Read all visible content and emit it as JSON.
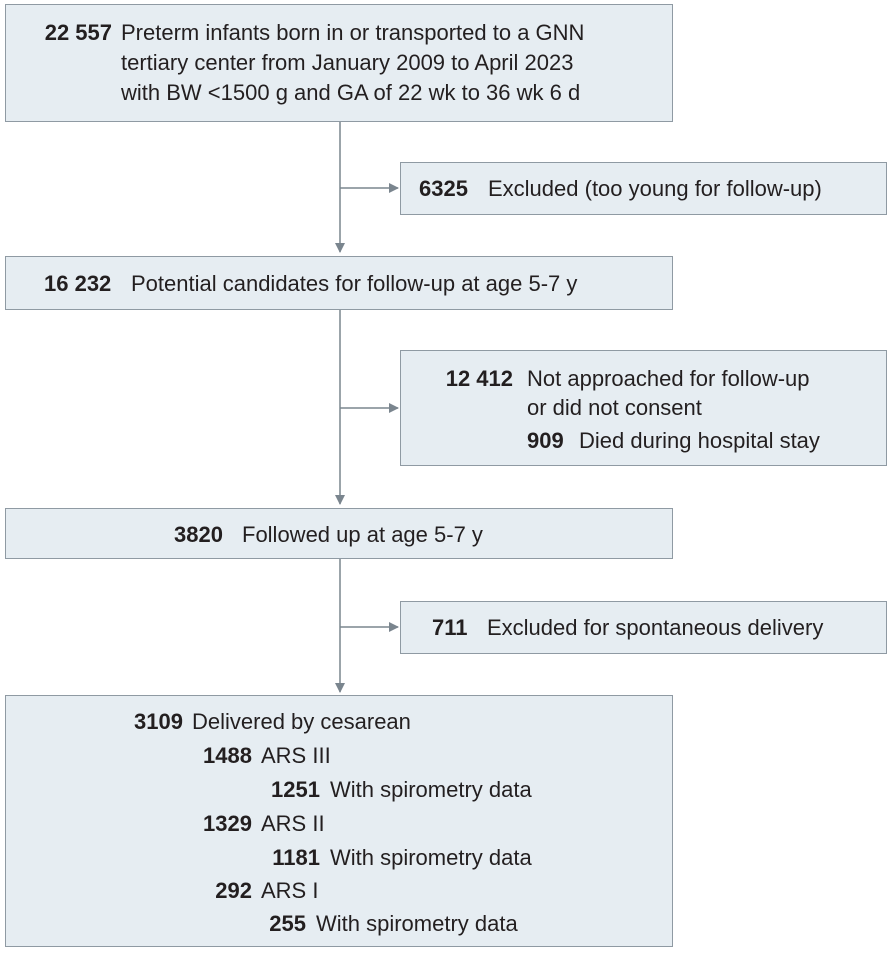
{
  "boxes": {
    "cohort": {
      "count": "22 557",
      "lines": [
        "Preterm infants born in or transported to a GNN",
        "tertiary center from January 2009 to April 2023",
        "with BW <1500 g and GA of 22 wk to 36 wk 6 d"
      ]
    },
    "excluded_young": {
      "count": "6325",
      "text": "Excluded (too young for follow-up)"
    },
    "candidates": {
      "count": "16 232",
      "text": "Potential candidates for follow-up at age 5-7 y"
    },
    "not_followed": {
      "items": [
        {
          "count": "12 412",
          "lines": [
            "Not approached for follow-up",
            "or did not consent"
          ]
        },
        {
          "count": "909",
          "lines": [
            "Died during hospital stay"
          ]
        }
      ]
    },
    "followed": {
      "count": "3820",
      "text": "Followed up at age 5-7 y"
    },
    "excluded_spontaneous": {
      "count": "711",
      "text": "Excluded for spontaneous delivery"
    },
    "cesarean": {
      "count": "3109",
      "text": "Delivered by cesarean",
      "groups": [
        {
          "count": "1488",
          "label": "ARS III",
          "spiro_count": "1251",
          "spiro_label": "With spirometry data"
        },
        {
          "count": "1329",
          "label": "ARS II",
          "spiro_count": "1181",
          "spiro_label": "With spirometry data"
        },
        {
          "count": "292",
          "label": "ARS I",
          "spiro_count": "255",
          "spiro_label": "With spirometry data"
        }
      ]
    }
  },
  "colors": {
    "box_fill": "#e6edf2",
    "box_border": "#8f9aa3",
    "arrow": "#7a858e",
    "text": "#231f20"
  }
}
